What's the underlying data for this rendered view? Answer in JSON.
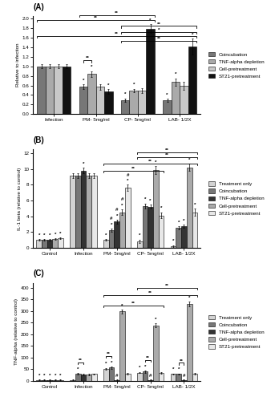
{
  "chart_data": [
    {
      "type": "bar",
      "title": "(A)",
      "ylabel": "Relative to infection",
      "categories": [
        "Infection",
        "PM- 5mg/ml",
        "CP- 5mg/ml",
        "LAB- 1/2X"
      ],
      "ylim": [
        0,
        2.05
      ],
      "yticks": [
        {
          "value": 0,
          "label": "0.0"
        },
        0.2,
        0.4,
        0.6,
        0.8,
        1.0,
        1.2,
        1.4,
        1.6,
        1.8,
        2.0
      ],
      "legend": "right",
      "series": [
        {
          "name": "Coincubation",
          "color": "#777777",
          "values": [
            1.0,
            0.57,
            0.29,
            0.29
          ],
          "errors": [
            0.04,
            0.05,
            0.04,
            0.03
          ],
          "marks": [
            [],
            [
              "*"
            ],
            [
              "*"
            ],
            [
              "*"
            ]
          ]
        },
        {
          "name": "TNF-alpha depletion",
          "color": "#aaaaaa",
          "values": [
            1.0,
            0.84,
            0.49,
            0.67
          ],
          "errors": [
            0.04,
            0.06,
            0.04,
            0.08
          ],
          "marks": [
            [],
            [
              "*"
            ],
            [
              "*"
            ],
            [
              "*"
            ]
          ]
        },
        {
          "name": "Cell-pretreatment",
          "color": "#c8c8c8",
          "values": [
            1.0,
            0.57,
            0.49,
            0.59
          ],
          "errors": [
            0.04,
            0.06,
            0.05,
            0.08
          ],
          "marks": [
            [],
            [],
            [],
            []
          ]
        },
        {
          "name": "ST21-pretreatment",
          "color": "#111111",
          "values": [
            1.0,
            0.47,
            1.79,
            1.41
          ],
          "errors": [
            0.04,
            0.05,
            0.09,
            0.17
          ],
          "marks": [
            [],
            [
              "*"
            ],
            [
              "*"
            ],
            [
              "*"
            ]
          ]
        }
      ],
      "brackets": [
        {
          "category": 1,
          "series": [
            0,
            1
          ],
          "label": "**"
        },
        {
          "categories": [
            0,
            2
          ],
          "y": 1.927,
          "label": "**"
        },
        {
          "categories": [
            1,
            2
          ],
          "y": 2.0295,
          "label": "**"
        },
        {
          "categories": [
            2,
            3
          ],
          "y": 1.804,
          "label": "**"
        },
        {
          "categories": [
            2,
            3
          ],
          "y": 1.681,
          "label": "*"
        },
        {
          "categories": [
            0,
            3
          ],
          "y": 1.599,
          "label": "**"
        },
        {
          "categories": [
            2,
            3
          ],
          "y": 1.4965,
          "label": "**"
        }
      ]
    },
    {
      "type": "bar",
      "title": "(B)",
      "ylabel": "IL-1 beta (relative to control)",
      "categories": [
        "Control",
        "Infection",
        "PM- 5mg/ml",
        "CP- 5mg/ml",
        "LAB- 1/2X"
      ],
      "ylim": [
        0,
        12.5
      ],
      "yticks": [
        0,
        2,
        4,
        6,
        8,
        10,
        12
      ],
      "legend": "right",
      "series": [
        {
          "name": "Treatment only",
          "color": "#d3d3d3",
          "values": [
            1.0,
            9.2,
            1.0,
            0.8,
            0.2
          ],
          "errors": [
            0.1,
            0.3,
            0.1,
            0.2,
            0.1
          ],
          "marks": [
            [
              "*"
            ],
            [],
            [
              "*"
            ],
            [
              "*"
            ],
            [
              "*"
            ]
          ]
        },
        {
          "name": "Coincubation",
          "color": "#777777",
          "values": [
            1.0,
            9.2,
            2.2,
            5.3,
            2.5
          ],
          "errors": [
            0.1,
            0.3,
            0.2,
            0.3,
            0.2
          ],
          "marks": [
            [
              "*"
            ],
            [],
            [
              "*",
              "#"
            ],
            [
              "*"
            ],
            [
              "*"
            ]
          ]
        },
        {
          "name": "TNF-alpha depletion",
          "color": "#333333",
          "values": [
            1.0,
            9.8,
            3.3,
            5.2,
            2.7
          ],
          "errors": [
            0.1,
            0.35,
            0.25,
            0.25,
            0.2
          ],
          "marks": [
            [
              "*"
            ],
            [
              "*"
            ],
            [
              "*",
              "#"
            ],
            [
              "*"
            ],
            [
              "*"
            ]
          ]
        },
        {
          "name": "Cell-pretreatment",
          "color": "#aaaaaa",
          "values": [
            1.1,
            9.2,
            4.5,
            9.9,
            10.2
          ],
          "errors": [
            0.1,
            0.3,
            0.35,
            0.5,
            0.45
          ],
          "marks": [
            [
              "*"
            ],
            [],
            [
              "*",
              "#"
            ],
            [
              "*"
            ],
            [
              "*"
            ]
          ]
        },
        {
          "name": "ST21-pretreatment",
          "color": "#e8e8e8",
          "values": [
            1.2,
            9.2,
            7.6,
            4.1,
            4.5
          ],
          "errors": [
            0.1,
            0.3,
            0.4,
            0.4,
            0.45
          ],
          "marks": [
            [
              "*"
            ],
            [],
            [
              "*",
              "#"
            ],
            [
              "*"
            ],
            [
              "*"
            ]
          ]
        }
      ],
      "brackets": [
        {
          "categories": [
            2,
            3
          ],
          "y": 9.6,
          "label": "**"
        },
        {
          "categories": [
            2,
            4
          ],
          "y": 10.5,
          "label": "**"
        },
        {
          "categories": [
            3,
            4
          ],
          "y": 11.3,
          "label": "**"
        },
        {
          "categories": [
            3,
            4
          ],
          "y": 11.9,
          "label": "**"
        }
      ]
    },
    {
      "type": "bar",
      "title": "(C)",
      "ylabel": "TNF-alpha (relative to control)",
      "categories": [
        "Control",
        "Infection",
        "PM- 5mg/ml",
        "CP- 5mg/ml",
        "LAB- 1/2X"
      ],
      "ylim": [
        0,
        420
      ],
      "yticks": [
        0,
        50,
        100,
        150,
        200,
        250,
        300,
        350,
        400
      ],
      "legend": "right",
      "series": [
        {
          "name": "Treatment only",
          "color": "#d3d3d3",
          "values": [
            5,
            5,
            52,
            36,
            30
          ],
          "errors": [
            1,
            2,
            4,
            3,
            2
          ],
          "marks": [
            [
              "*"
            ],
            [],
            [
              "*"
            ],
            [
              "*"
            ],
            [
              "*"
            ]
          ]
        },
        {
          "name": "Coincubation",
          "color": "#777777",
          "values": [
            5,
            30,
            57,
            40,
            30
          ],
          "errors": [
            1,
            3,
            5,
            4,
            2
          ],
          "marks": [
            [
              "*"
            ],
            [
              "*"
            ],
            [
              "*"
            ],
            [
              "*"
            ],
            [
              "*"
            ]
          ]
        },
        {
          "name": "TNF-alpha depletion",
          "color": "#333333",
          "values": [
            5,
            28,
            5,
            5,
            5
          ],
          "errors": [
            1,
            3,
            2,
            2,
            1
          ],
          "marks": [
            [
              "*"
            ],
            [],
            [
              "#"
            ],
            [
              "#"
            ],
            [
              "#"
            ]
          ]
        },
        {
          "name": "Cell-pretreatment",
          "color": "#aaaaaa",
          "values": [
            5,
            28,
            298,
            238,
            330
          ],
          "errors": [
            1,
            3,
            8,
            8,
            10
          ],
          "marks": [
            [
              "*"
            ],
            [],
            [
              "*"
            ],
            [
              "*"
            ],
            [
              "*"
            ]
          ]
        },
        {
          "name": "ST21-pretreatment",
          "color": "#e8e8e8",
          "values": [
            5,
            30,
            32,
            35,
            32
          ],
          "errors": [
            1,
            2,
            3,
            3,
            3
          ],
          "marks": [
            [
              "*"
            ],
            [],
            [],
            [],
            []
          ]
        }
      ],
      "brackets": [
        {
          "category": 1,
          "series": [
            1,
            2
          ],
          "label": "**"
        },
        {
          "category": 2,
          "series": [
            0,
            1
          ],
          "label": "**"
        },
        {
          "category": 3,
          "series": [
            1,
            2
          ],
          "label": "**"
        },
        {
          "category": 4,
          "series": [
            1,
            2
          ],
          "label": "**"
        },
        {
          "categories": [
            2,
            3
          ],
          "y": 315,
          "label": "**"
        },
        {
          "categories": [
            2,
            4
          ],
          "y": 360,
          "label": "**"
        },
        {
          "categories": [
            3,
            4
          ],
          "y": 390,
          "label": "**"
        }
      ]
    }
  ]
}
